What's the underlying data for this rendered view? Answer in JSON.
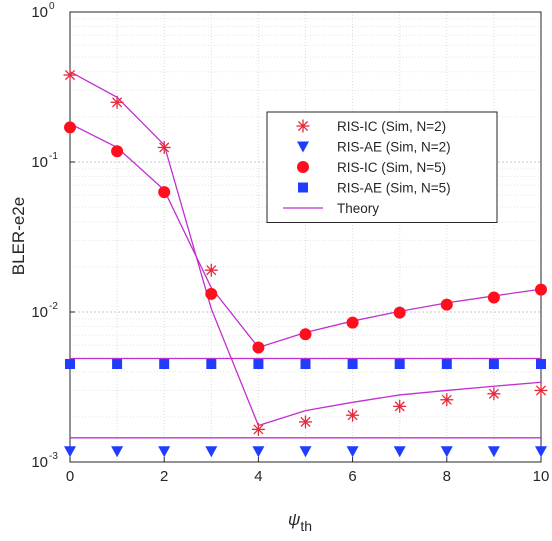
{
  "chart_data": {
    "type": "line",
    "title": "",
    "xlabel": "ψ",
    "xlabel_sub": "th",
    "ylabel": "BLER-e2e",
    "xlim": [
      0,
      10
    ],
    "ylim": [
      0.001,
      1
    ],
    "yscale": "log",
    "grid": true,
    "legend_position": "right-center",
    "x_ticks": [
      0,
      2,
      4,
      6,
      8,
      10
    ],
    "y_ticks": [
      {
        "value": 0.001,
        "base": "10",
        "exp": "-3"
      },
      {
        "value": 0.01,
        "base": "10",
        "exp": "-2"
      },
      {
        "value": 0.1,
        "base": "10",
        "exp": "-1"
      },
      {
        "value": 1,
        "base": "10",
        "exp": "0"
      }
    ],
    "x": [
      0,
      1,
      2,
      3,
      4,
      5,
      6,
      7,
      8,
      9,
      10
    ],
    "series": [
      {
        "name": "RIS-IC (Sim, N=2)",
        "marker": "asterisk",
        "color": "#e8283a",
        "values": [
          0.38,
          0.25,
          0.125,
          0.019,
          0.00165,
          0.00185,
          0.00205,
          0.00235,
          0.0026,
          0.00285,
          0.003
        ]
      },
      {
        "name": "RIS-AE (Sim, N=2)",
        "marker": "triangle-down",
        "color": "#1f3cff",
        "values": [
          0.00118,
          0.00118,
          0.00118,
          0.00118,
          0.00118,
          0.00118,
          0.00118,
          0.00118,
          0.00118,
          0.00118,
          0.00118
        ]
      },
      {
        "name": "RIS-IC (Sim, N=5)",
        "marker": "circle",
        "color": "#ff0f1e",
        "values": [
          0.17,
          0.118,
          0.063,
          0.0132,
          0.0058,
          0.0071,
          0.0085,
          0.0099,
          0.0112,
          0.0125,
          0.0141
        ]
      },
      {
        "name": "RIS-AE (Sim, N=5)",
        "marker": "square",
        "color": "#1f3cff",
        "values": [
          0.0045,
          0.0045,
          0.0045,
          0.0045,
          0.0045,
          0.0045,
          0.0045,
          0.0045,
          0.0045,
          0.0045,
          0.0045
        ]
      },
      {
        "name": "Theory",
        "marker": "none",
        "color": "#c030d0",
        "curves": [
          [
            0.4,
            0.27,
            0.13,
            0.0105,
            0.00175,
            0.0022,
            0.0025,
            0.0028,
            0.003,
            0.0032,
            0.0034
          ],
          [
            0.18,
            0.125,
            0.065,
            0.0145,
            0.0058,
            0.0073,
            0.0087,
            0.0101,
            0.0115,
            0.0128,
            0.0142
          ],
          [
            0.0049,
            0.0049,
            0.0049,
            0.0049,
            0.0049,
            0.0049,
            0.0049,
            0.0049,
            0.0049,
            0.0049,
            0.0049
          ],
          [
            0.00145,
            0.00145,
            0.00145,
            0.00145,
            0.00145,
            0.00145,
            0.00145,
            0.00145,
            0.00145,
            0.00145,
            0.00145
          ]
        ]
      }
    ]
  }
}
